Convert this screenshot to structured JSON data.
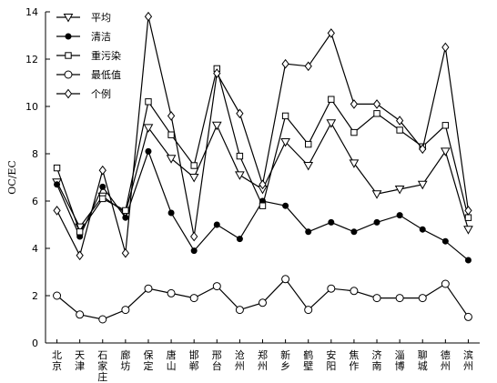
{
  "chart_data": {
    "type": "line",
    "title": "",
    "xlabel": "",
    "ylabel": "OC/EC",
    "ylim": [
      0,
      14
    ],
    "yticks": [
      0,
      2,
      4,
      6,
      8,
      10,
      12,
      14
    ],
    "grid": false,
    "legend_position": "top-left",
    "categories": [
      "北京",
      "天津",
      "石家庄",
      "廊坊",
      "保定",
      "唐山",
      "邯郸",
      "邢台",
      "沧州",
      "郑州",
      "新乡",
      "鹤壁",
      "安阳",
      "焦作",
      "济南",
      "淄博",
      "聊城",
      "德州",
      "滨州"
    ],
    "series": [
      {
        "name": "平均",
        "marker": "triangle-down",
        "values": [
          6.8,
          4.9,
          6.2,
          5.5,
          9.1,
          7.8,
          7.0,
          9.2,
          7.1,
          6.5,
          8.5,
          7.5,
          9.3,
          7.6,
          6.3,
          6.5,
          6.7,
          8.1,
          4.8
        ]
      },
      {
        "name": "清洁",
        "marker": "filled-circle",
        "values": [
          6.7,
          4.5,
          6.6,
          5.3,
          8.1,
          5.5,
          3.9,
          5.0,
          4.4,
          6.0,
          5.8,
          4.7,
          5.1,
          4.7,
          5.1,
          5.4,
          4.8,
          4.3,
          3.5
        ]
      },
      {
        "name": "重污染",
        "marker": "square",
        "values": [
          7.4,
          4.7,
          6.1,
          5.6,
          10.2,
          8.8,
          7.5,
          11.6,
          7.9,
          5.8,
          9.6,
          8.4,
          10.3,
          8.9,
          9.7,
          9.0,
          8.3,
          9.2,
          5.3
        ]
      },
      {
        "name": "最低值",
        "marker": "open-circle",
        "values": [
          2.0,
          1.2,
          1.0,
          1.4,
          2.3,
          2.1,
          1.9,
          2.4,
          1.4,
          1.7,
          2.7,
          1.4,
          2.3,
          2.2,
          1.9,
          1.9,
          1.9,
          2.5,
          1.1
        ]
      },
      {
        "name": "个例",
        "marker": "diamond",
        "values": [
          5.6,
          3.7,
          7.3,
          3.8,
          13.8,
          9.6,
          4.5,
          11.4,
          9.7,
          6.7,
          11.8,
          11.7,
          13.1,
          10.1,
          10.1,
          9.4,
          8.2,
          12.5,
          5.6
        ]
      }
    ]
  }
}
